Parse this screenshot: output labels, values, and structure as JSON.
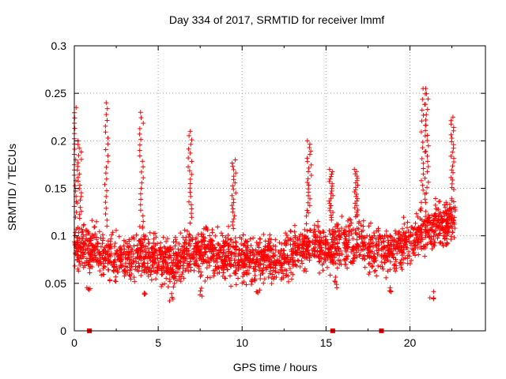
{
  "chart_data": {
    "type": "scatter",
    "title": "Day 334 of 2017, SRMTID for receiver lmmf",
    "xlabel": "GPS time / hours",
    "ylabel": "SRMTID / TECUs",
    "xlim": [
      0,
      24.5
    ],
    "ylim": [
      0,
      0.3
    ],
    "xticks": [
      0,
      5,
      10,
      15,
      20
    ],
    "xtick_labels": [
      "0",
      "5",
      "10",
      "15",
      "20"
    ],
    "yticks": [
      0,
      0.05,
      0.1,
      0.15,
      0.2,
      0.25,
      0.3
    ],
    "ytick_labels": [
      "0",
      "0.05",
      "0.1",
      "0.15",
      "0.2",
      "0.25",
      "0.3"
    ],
    "grid": true,
    "color": "#ff0000",
    "marker": "plus",
    "series": [
      {
        "name": "SRMTID",
        "x_range": [
          0,
          22.7
        ],
        "typical_range": [
          0.04,
          0.14
        ],
        "trend": [
          [
            0,
            0.09
          ],
          [
            1,
            0.085
          ],
          [
            2,
            0.08
          ],
          [
            3,
            0.075
          ],
          [
            4,
            0.08
          ],
          [
            5,
            0.075
          ],
          [
            6,
            0.07
          ],
          [
            7,
            0.085
          ],
          [
            8,
            0.085
          ],
          [
            9,
            0.08
          ],
          [
            10,
            0.075
          ],
          [
            11,
            0.075
          ],
          [
            12,
            0.075
          ],
          [
            13,
            0.08
          ],
          [
            14,
            0.095
          ],
          [
            15,
            0.085
          ],
          [
            16,
            0.09
          ],
          [
            17,
            0.09
          ],
          [
            18,
            0.085
          ],
          [
            19,
            0.085
          ],
          [
            20,
            0.095
          ],
          [
            21,
            0.11
          ],
          [
            22,
            0.11
          ],
          [
            22.7,
            0.12
          ]
        ],
        "peaks": [
          [
            0,
            0.235
          ],
          [
            0.3,
            0.2
          ],
          [
            1.9,
            0.24
          ],
          [
            4,
            0.23
          ],
          [
            6.9,
            0.21
          ],
          [
            9.5,
            0.18
          ],
          [
            14,
            0.2
          ],
          [
            15.3,
            0.17
          ],
          [
            16.8,
            0.17
          ],
          [
            20.8,
            0.255
          ],
          [
            21,
            0.255
          ],
          [
            22.5,
            0.225
          ]
        ],
        "low_points": [
          [
            0.8,
            0.04
          ],
          [
            4.2,
            0.035
          ],
          [
            5.8,
            0.03
          ],
          [
            7.5,
            0.035
          ],
          [
            11,
            0.035
          ],
          [
            15.5,
            0.045
          ],
          [
            18.8,
            0.04
          ],
          [
            21.3,
            0.032
          ]
        ]
      }
    ],
    "zero_markers_x": [
      0.9,
      15.4,
      18.3
    ]
  }
}
